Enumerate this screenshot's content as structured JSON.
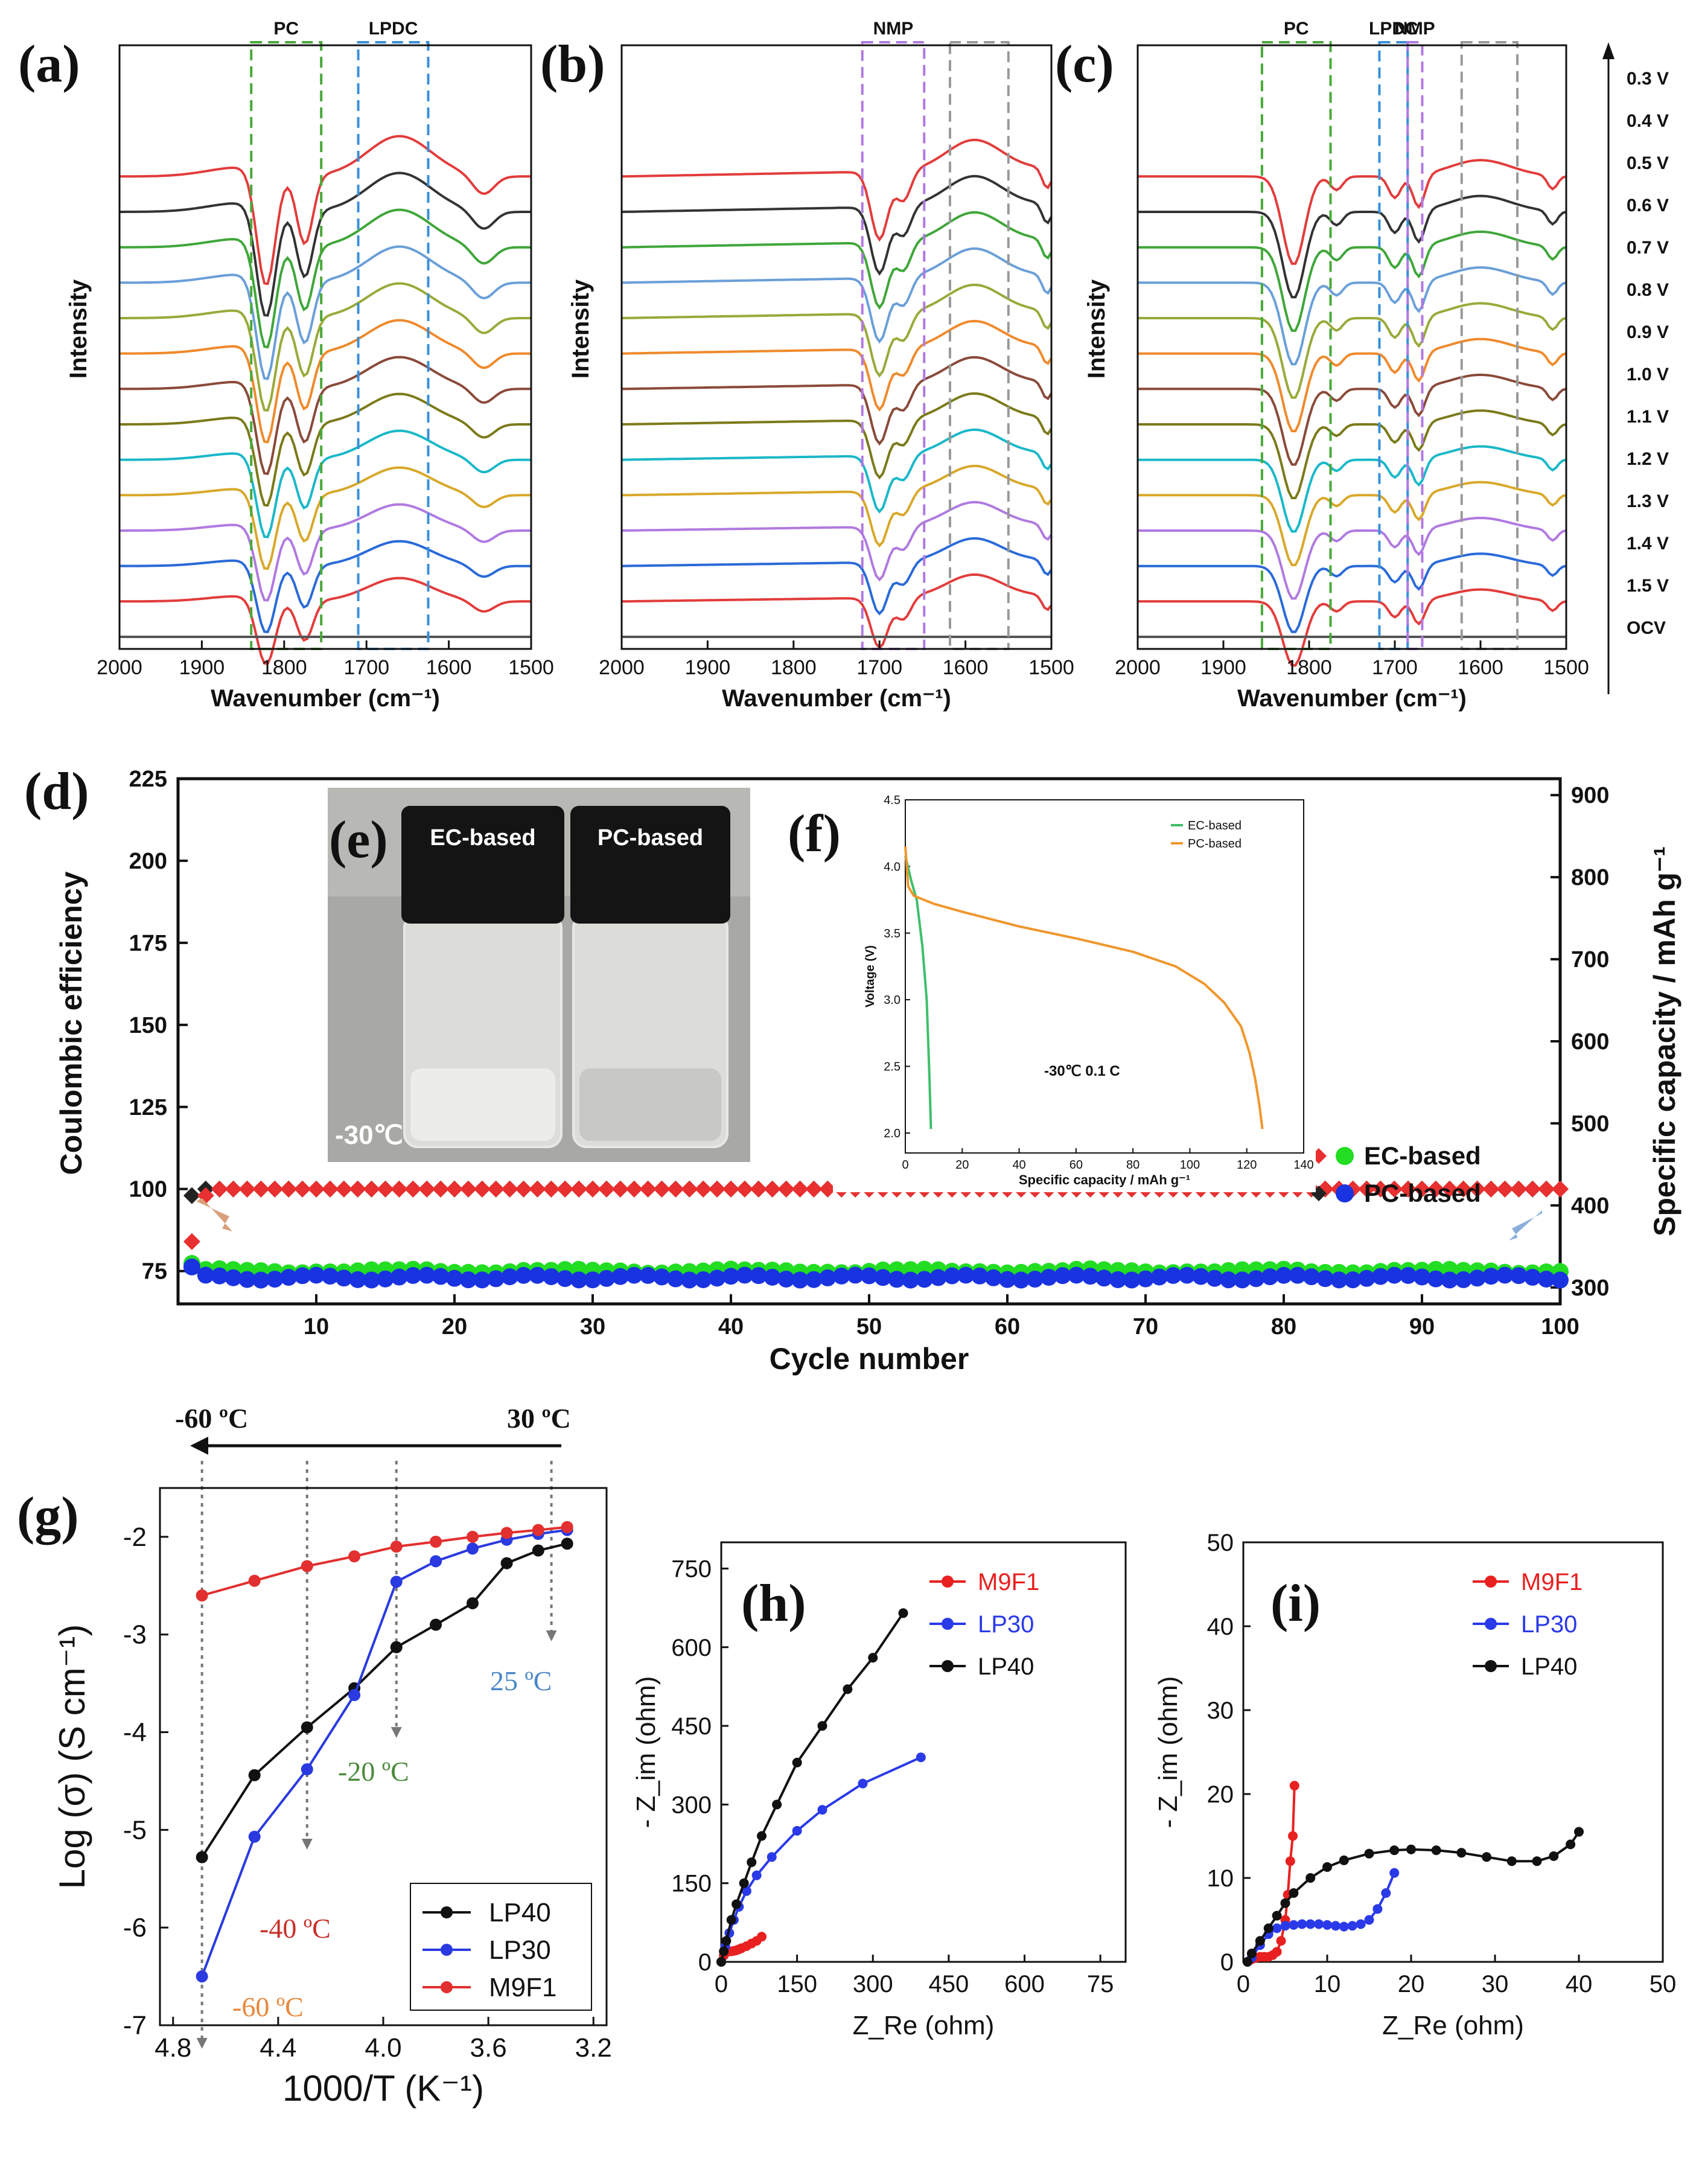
{
  "chart_data": [
    {
      "id": "a",
      "panel_label": "(a)",
      "type": "line",
      "title": "",
      "xlabel": "Wavenumber (cm⁻¹)",
      "ylabel": "Intensity",
      "xlim": [
        2000,
        1500
      ],
      "x_ticks": [
        "2000",
        "1900",
        "1800",
        "1700",
        "1600",
        "1500"
      ],
      "boxes": [
        {
          "label": "PC",
          "range": [
            1840,
            1755
          ],
          "color": "#4aa83a"
        },
        {
          "label": "LPDC",
          "range": [
            1710,
            1625
          ],
          "color": "#3a8fd8"
        }
      ],
      "series": [
        {
          "name": "0.3 V",
          "color": "#e23c3c",
          "baseline": 13
        },
        {
          "name": "0.4 V",
          "color": "#333333",
          "baseline": 12
        },
        {
          "name": "0.5 V",
          "color": "#3fa63a",
          "baseline": 11
        },
        {
          "name": "0.6 V",
          "color": "#6a9fd8",
          "baseline": 10
        },
        {
          "name": "0.7 V",
          "color": "#9aa93a",
          "baseline": 9
        },
        {
          "name": "0.8 V",
          "color": "#ef8a2c",
          "baseline": 8
        },
        {
          "name": "0.9 V",
          "color": "#8a4a3a",
          "baseline": 7
        },
        {
          "name": "1.0 V",
          "color": "#7a7a1a",
          "baseline": 6
        },
        {
          "name": "1.1 V",
          "color": "#1ab8c8",
          "baseline": 5
        },
        {
          "name": "1.2 V",
          "color": "#d8a82a",
          "baseline": 4
        },
        {
          "name": "1.3 V",
          "color": "#b07ae0",
          "baseline": 3
        },
        {
          "name": "1.4 V",
          "color": "#2a6ad8",
          "baseline": 2
        },
        {
          "name": "1.5 V",
          "color": "#e23c3c",
          "baseline": 1
        },
        {
          "name": "OCV",
          "color": "#555555",
          "baseline": 0
        }
      ]
    },
    {
      "id": "b",
      "panel_label": "(b)",
      "type": "line",
      "xlabel": "Wavenumber (cm⁻¹)",
      "ylabel": "Intensity",
      "xlim": [
        2000,
        1500
      ],
      "x_ticks": [
        "2000",
        "1900",
        "1800",
        "1700",
        "1600",
        "1500"
      ],
      "boxes": [
        {
          "label": "NMP",
          "range": [
            1720,
            1648
          ],
          "color": "#b07ae0"
        },
        {
          "label": "",
          "range": [
            1618,
            1550
          ],
          "color": "#999999"
        }
      ],
      "series": [
        {
          "name": "0.3 V",
          "color": "#e23c3c",
          "baseline": 13
        },
        {
          "name": "0.4 V",
          "color": "#333333",
          "baseline": 12
        },
        {
          "name": "0.5 V",
          "color": "#3fa63a",
          "baseline": 11
        },
        {
          "name": "0.6 V",
          "color": "#6a9fd8",
          "baseline": 10
        },
        {
          "name": "0.7 V",
          "color": "#9aa93a",
          "baseline": 9
        },
        {
          "name": "0.8 V",
          "color": "#ef8a2c",
          "baseline": 8
        },
        {
          "name": "0.9 V",
          "color": "#8a4a3a",
          "baseline": 7
        },
        {
          "name": "1.0 V",
          "color": "#7a7a1a",
          "baseline": 6
        },
        {
          "name": "1.1 V",
          "color": "#1ab8c8",
          "baseline": 5
        },
        {
          "name": "1.2 V",
          "color": "#d8a82a",
          "baseline": 4
        },
        {
          "name": "1.3 V",
          "color": "#b07ae0",
          "baseline": 3
        },
        {
          "name": "1.4 V",
          "color": "#2a6ad8",
          "baseline": 2
        },
        {
          "name": "1.5 V",
          "color": "#e23c3c",
          "baseline": 1
        },
        {
          "name": "OCV",
          "color": "#555555",
          "baseline": 0
        }
      ]
    },
    {
      "id": "c",
      "panel_label": "(c)",
      "type": "line",
      "xlabel": "Wavenumber (cm⁻¹)",
      "ylabel": "Intensity",
      "xlim": [
        2000,
        1500
      ],
      "x_ticks": [
        "2000",
        "1900",
        "1800",
        "1700",
        "1600",
        "1500"
      ],
      "boxes": [
        {
          "label": "PC",
          "range": [
            1855,
            1775
          ],
          "color": "#4aa83a"
        },
        {
          "label": "LPDC",
          "range": [
            1718,
            1685
          ],
          "color": "#3a8fd8"
        },
        {
          "label": "NMP",
          "range": [
            1685,
            1668
          ],
          "color": "#b07ae0"
        },
        {
          "label": "",
          "range": [
            1622,
            1557
          ],
          "color": "#999999"
        }
      ],
      "voltage_labels": [
        "0.3 V",
        "0.4 V",
        "0.5 V",
        "0.6 V",
        "0.7 V",
        "0.8 V",
        "0.9 V",
        "1.0 V",
        "1.1 V",
        "1.2 V",
        "1.3 V",
        "1.4 V",
        "1.5 V",
        "OCV"
      ],
      "series": [
        {
          "name": "0.3 V",
          "color": "#e23c3c",
          "baseline": 13
        },
        {
          "name": "0.4 V",
          "color": "#333333",
          "baseline": 12
        },
        {
          "name": "0.5 V",
          "color": "#3fa63a",
          "baseline": 11
        },
        {
          "name": "0.6 V",
          "color": "#6a9fd8",
          "baseline": 10
        },
        {
          "name": "0.7 V",
          "color": "#9aa93a",
          "baseline": 9
        },
        {
          "name": "0.8 V",
          "color": "#ef8a2c",
          "baseline": 8
        },
        {
          "name": "0.9 V",
          "color": "#8a4a3a",
          "baseline": 7
        },
        {
          "name": "1.0 V",
          "color": "#7a7a1a",
          "baseline": 6
        },
        {
          "name": "1.1 V",
          "color": "#1ab8c8",
          "baseline": 5
        },
        {
          "name": "1.2 V",
          "color": "#d8a82a",
          "baseline": 4
        },
        {
          "name": "1.3 V",
          "color": "#b07ae0",
          "baseline": 3
        },
        {
          "name": "1.4 V",
          "color": "#2a6ad8",
          "baseline": 2
        },
        {
          "name": "1.5 V",
          "color": "#e23c3c",
          "baseline": 1
        },
        {
          "name": "OCV",
          "color": "#555555",
          "baseline": 0
        }
      ]
    },
    {
      "id": "d",
      "panel_label": "(d)",
      "type": "scatter",
      "xlabel": "Cycle number",
      "ylabel": "Coulombic efficiency",
      "ylabel_right": "Specific capacity / mAh g⁻¹",
      "xlim": [
        0,
        100
      ],
      "ylim": [
        65,
        225
      ],
      "ylim_right": [
        280,
        920
      ],
      "x_ticks": [
        "10",
        "20",
        "30",
        "40",
        "50",
        "60",
        "70",
        "80",
        "90",
        "100"
      ],
      "y_ticks": [
        "75",
        "100",
        "125",
        "150",
        "175",
        "200",
        "225"
      ],
      "y_ticks_right": [
        "300",
        "400",
        "500",
        "600",
        "700",
        "800",
        "900"
      ],
      "legend": [
        {
          "label": "EC-based",
          "markers": [
            "#e83030",
            "#22dd22"
          ]
        },
        {
          "label": "PC-based",
          "markers": [
            "#222222",
            "#1a33e0"
          ]
        }
      ],
      "series": [
        {
          "name": "EC-based CE",
          "axis": "left",
          "color": "#e83030",
          "marker": "diamond",
          "first_value": 84,
          "values_from_cycle_2": 98,
          "steady_value": 100
        },
        {
          "name": "PC-based CE",
          "axis": "left",
          "color": "#222222",
          "marker": "diamond",
          "first_value": 98,
          "steady_value": 100
        },
        {
          "name": "EC-based capacity",
          "axis": "right",
          "color": "#22dd22",
          "marker": "circle",
          "first_value": 330,
          "steady_value": 320
        },
        {
          "name": "PC-based capacity",
          "axis": "right",
          "color": "#1a33e0",
          "marker": "circle",
          "first_value": 325,
          "steady_value": 312
        }
      ]
    },
    {
      "id": "e",
      "panel_label": "(e)",
      "type": "photo",
      "vial_labels": [
        "EC-based",
        "PC-based"
      ],
      "temperature": "-30℃"
    },
    {
      "id": "f",
      "panel_label": "(f)",
      "type": "line",
      "xlabel": "Specific capacity / mAh g⁻¹",
      "ylabel": "Voltage (V)",
      "xlim": [
        0,
        140
      ],
      "ylim": [
        1.85,
        4.5
      ],
      "x_ticks": [
        "0",
        "20",
        "40",
        "60",
        "80",
        "100",
        "120",
        "140"
      ],
      "y_ticks": [
        "2.0",
        "2.5",
        "3.0",
        "3.5",
        "4.0",
        "4.5"
      ],
      "annotation": "-30℃  0.1 C",
      "series": [
        {
          "name": "EC-based",
          "color": "#3fbf6a",
          "x": [
            0,
            2,
            4,
            6,
            7.5,
            8.5,
            9
          ],
          "y": [
            4.08,
            3.9,
            3.75,
            3.4,
            3.0,
            2.4,
            2.03
          ]
        },
        {
          "name": "PC-based",
          "color": "#f0962c",
          "x": [
            0,
            1,
            3,
            10,
            20,
            40,
            60,
            80,
            95,
            105,
            112,
            118,
            121,
            123,
            124.5,
            125.5
          ],
          "y": [
            4.15,
            3.85,
            3.78,
            3.72,
            3.66,
            3.55,
            3.46,
            3.36,
            3.25,
            3.12,
            2.98,
            2.8,
            2.6,
            2.4,
            2.2,
            2.03
          ]
        }
      ]
    },
    {
      "id": "g",
      "panel_label": "(g)",
      "type": "line",
      "xlabel": "1000/T (K⁻¹)",
      "ylabel": "Log (σ) (S cm⁻¹)",
      "xlim": [
        4.85,
        3.15
      ],
      "ylim": [
        -7,
        -1.5
      ],
      "x_ticks": [
        "4.8",
        "4.4",
        "4.0",
        "3.6",
        "3.2"
      ],
      "y_ticks": [
        "-2",
        "-3",
        "-4",
        "-5",
        "-6",
        "-7"
      ],
      "arrow_labels": {
        "left": "-60 ºC",
        "right": "30 ºC"
      },
      "temperature_annotations": [
        {
          "text": "25 ºC",
          "color": "#4a86c8"
        },
        {
          "text": "-20 ºC",
          "color": "#4a8a3a"
        },
        {
          "text": "-40 ºC",
          "color": "#c83028"
        },
        {
          "text": "-60 ºC",
          "color": "#e8873a"
        }
      ],
      "series": [
        {
          "name": "LP40",
          "color": "#111111",
          "x": [
            4.69,
            4.49,
            4.29,
            4.11,
            3.95,
            3.8,
            3.66,
            3.53,
            3.41,
            3.3
          ],
          "y": [
            -5.28,
            -4.44,
            -3.95,
            -3.55,
            -3.13,
            -2.9,
            -2.68,
            -2.27,
            -2.14,
            -2.07
          ]
        },
        {
          "name": "LP30",
          "color": "#2a3ae0",
          "x": [
            4.69,
            4.49,
            4.29,
            4.11,
            3.95,
            3.8,
            3.66,
            3.53,
            3.41,
            3.3
          ],
          "y": [
            -6.5,
            -5.07,
            -4.38,
            -3.62,
            -2.46,
            -2.25,
            -2.12,
            -2.03,
            -1.97,
            -1.93
          ]
        },
        {
          "name": "M9F1",
          "color": "#e23030",
          "x": [
            4.69,
            4.49,
            4.29,
            4.11,
            3.95,
            3.8,
            3.66,
            3.53,
            3.41,
            3.3
          ],
          "y": [
            -2.6,
            -2.45,
            -2.3,
            -2.2,
            -2.1,
            -2.05,
            -2.0,
            -1.96,
            -1.93,
            -1.9
          ]
        }
      ]
    },
    {
      "id": "h",
      "panel_label": "(h)",
      "type": "line",
      "xlabel": "Z_Re (ohm)",
      "ylabel": "- Z_im (ohm)",
      "xlim": [
        0,
        800
      ],
      "ylim": [
        0,
        800
      ],
      "x_ticks": [
        "0",
        "150",
        "300",
        "450",
        "600",
        "75"
      ],
      "y_ticks": [
        "0",
        "150",
        "300",
        "450",
        "600",
        "750"
      ],
      "series": [
        {
          "name": "M9F1",
          "color": "#e82020",
          "x": [
            0,
            5,
            10,
            15,
            20,
            25,
            30,
            35,
            40,
            50,
            60,
            70,
            80
          ],
          "y": [
            0,
            12,
            18,
            20,
            20,
            21,
            22,
            24,
            26,
            30,
            35,
            40,
            48
          ]
        },
        {
          "name": "LP30",
          "color": "#2a3ae8",
          "x": [
            0,
            8,
            16,
            25,
            35,
            50,
            70,
            100,
            150,
            200,
            280,
            395
          ],
          "y": [
            0,
            30,
            55,
            80,
            105,
            135,
            165,
            200,
            250,
            290,
            340,
            390
          ]
        },
        {
          "name": "LP40",
          "color": "#111111",
          "x": [
            0,
            5,
            10,
            20,
            30,
            45,
            60,
            80,
            110,
            150,
            200,
            250,
            300,
            360
          ],
          "y": [
            0,
            20,
            40,
            80,
            110,
            150,
            190,
            240,
            300,
            380,
            450,
            520,
            580,
            665
          ]
        }
      ]
    },
    {
      "id": "i",
      "panel_label": "(i)",
      "type": "line",
      "xlabel": "Z_Re (ohm)",
      "ylabel": "- Z_im (ohm)",
      "xlim": [
        0,
        50
      ],
      "ylim": [
        0,
        50
      ],
      "x_ticks": [
        "0",
        "10",
        "20",
        "30",
        "40",
        "50"
      ],
      "y_ticks": [
        "0",
        "10",
        "20",
        "30",
        "40",
        "50"
      ],
      "series": [
        {
          "name": "M9F1",
          "color": "#e82020",
          "x": [
            0.5,
            1,
            1.5,
            2,
            2.5,
            3,
            3.5,
            4,
            4.5,
            5,
            5.3,
            5.6,
            5.9,
            6.1
          ],
          "y": [
            0,
            0.3,
            0.5,
            0.6,
            0.6,
            0.6,
            0.8,
            1.2,
            2.5,
            5.0,
            8.0,
            12.0,
            15.0,
            21.0
          ]
        },
        {
          "name": "LP30",
          "color": "#2a3ae8",
          "x": [
            0.5,
            1,
            2,
            3,
            4,
            5,
            6,
            7,
            8,
            9,
            10,
            11,
            12,
            13,
            14,
            15,
            16,
            17,
            18
          ],
          "y": [
            0,
            0.5,
            2.0,
            3.3,
            4.0,
            4.3,
            4.4,
            4.5,
            4.5,
            4.5,
            4.4,
            4.3,
            4.2,
            4.3,
            4.5,
            5.0,
            6.3,
            8.2,
            10.6
          ]
        },
        {
          "name": "LP40",
          "color": "#111111",
          "x": [
            0.5,
            1,
            2,
            3,
            4,
            5,
            6,
            8,
            10,
            12,
            15,
            18,
            20,
            23,
            26,
            29,
            32,
            35,
            37,
            39,
            40
          ],
          "y": [
            0,
            1,
            2.5,
            4.0,
            5.5,
            7.0,
            8.2,
            10,
            11.3,
            12.1,
            12.9,
            13.3,
            13.4,
            13.3,
            13.0,
            12.5,
            12.0,
            12.0,
            12.6,
            14.0,
            15.5
          ]
        }
      ]
    }
  ]
}
